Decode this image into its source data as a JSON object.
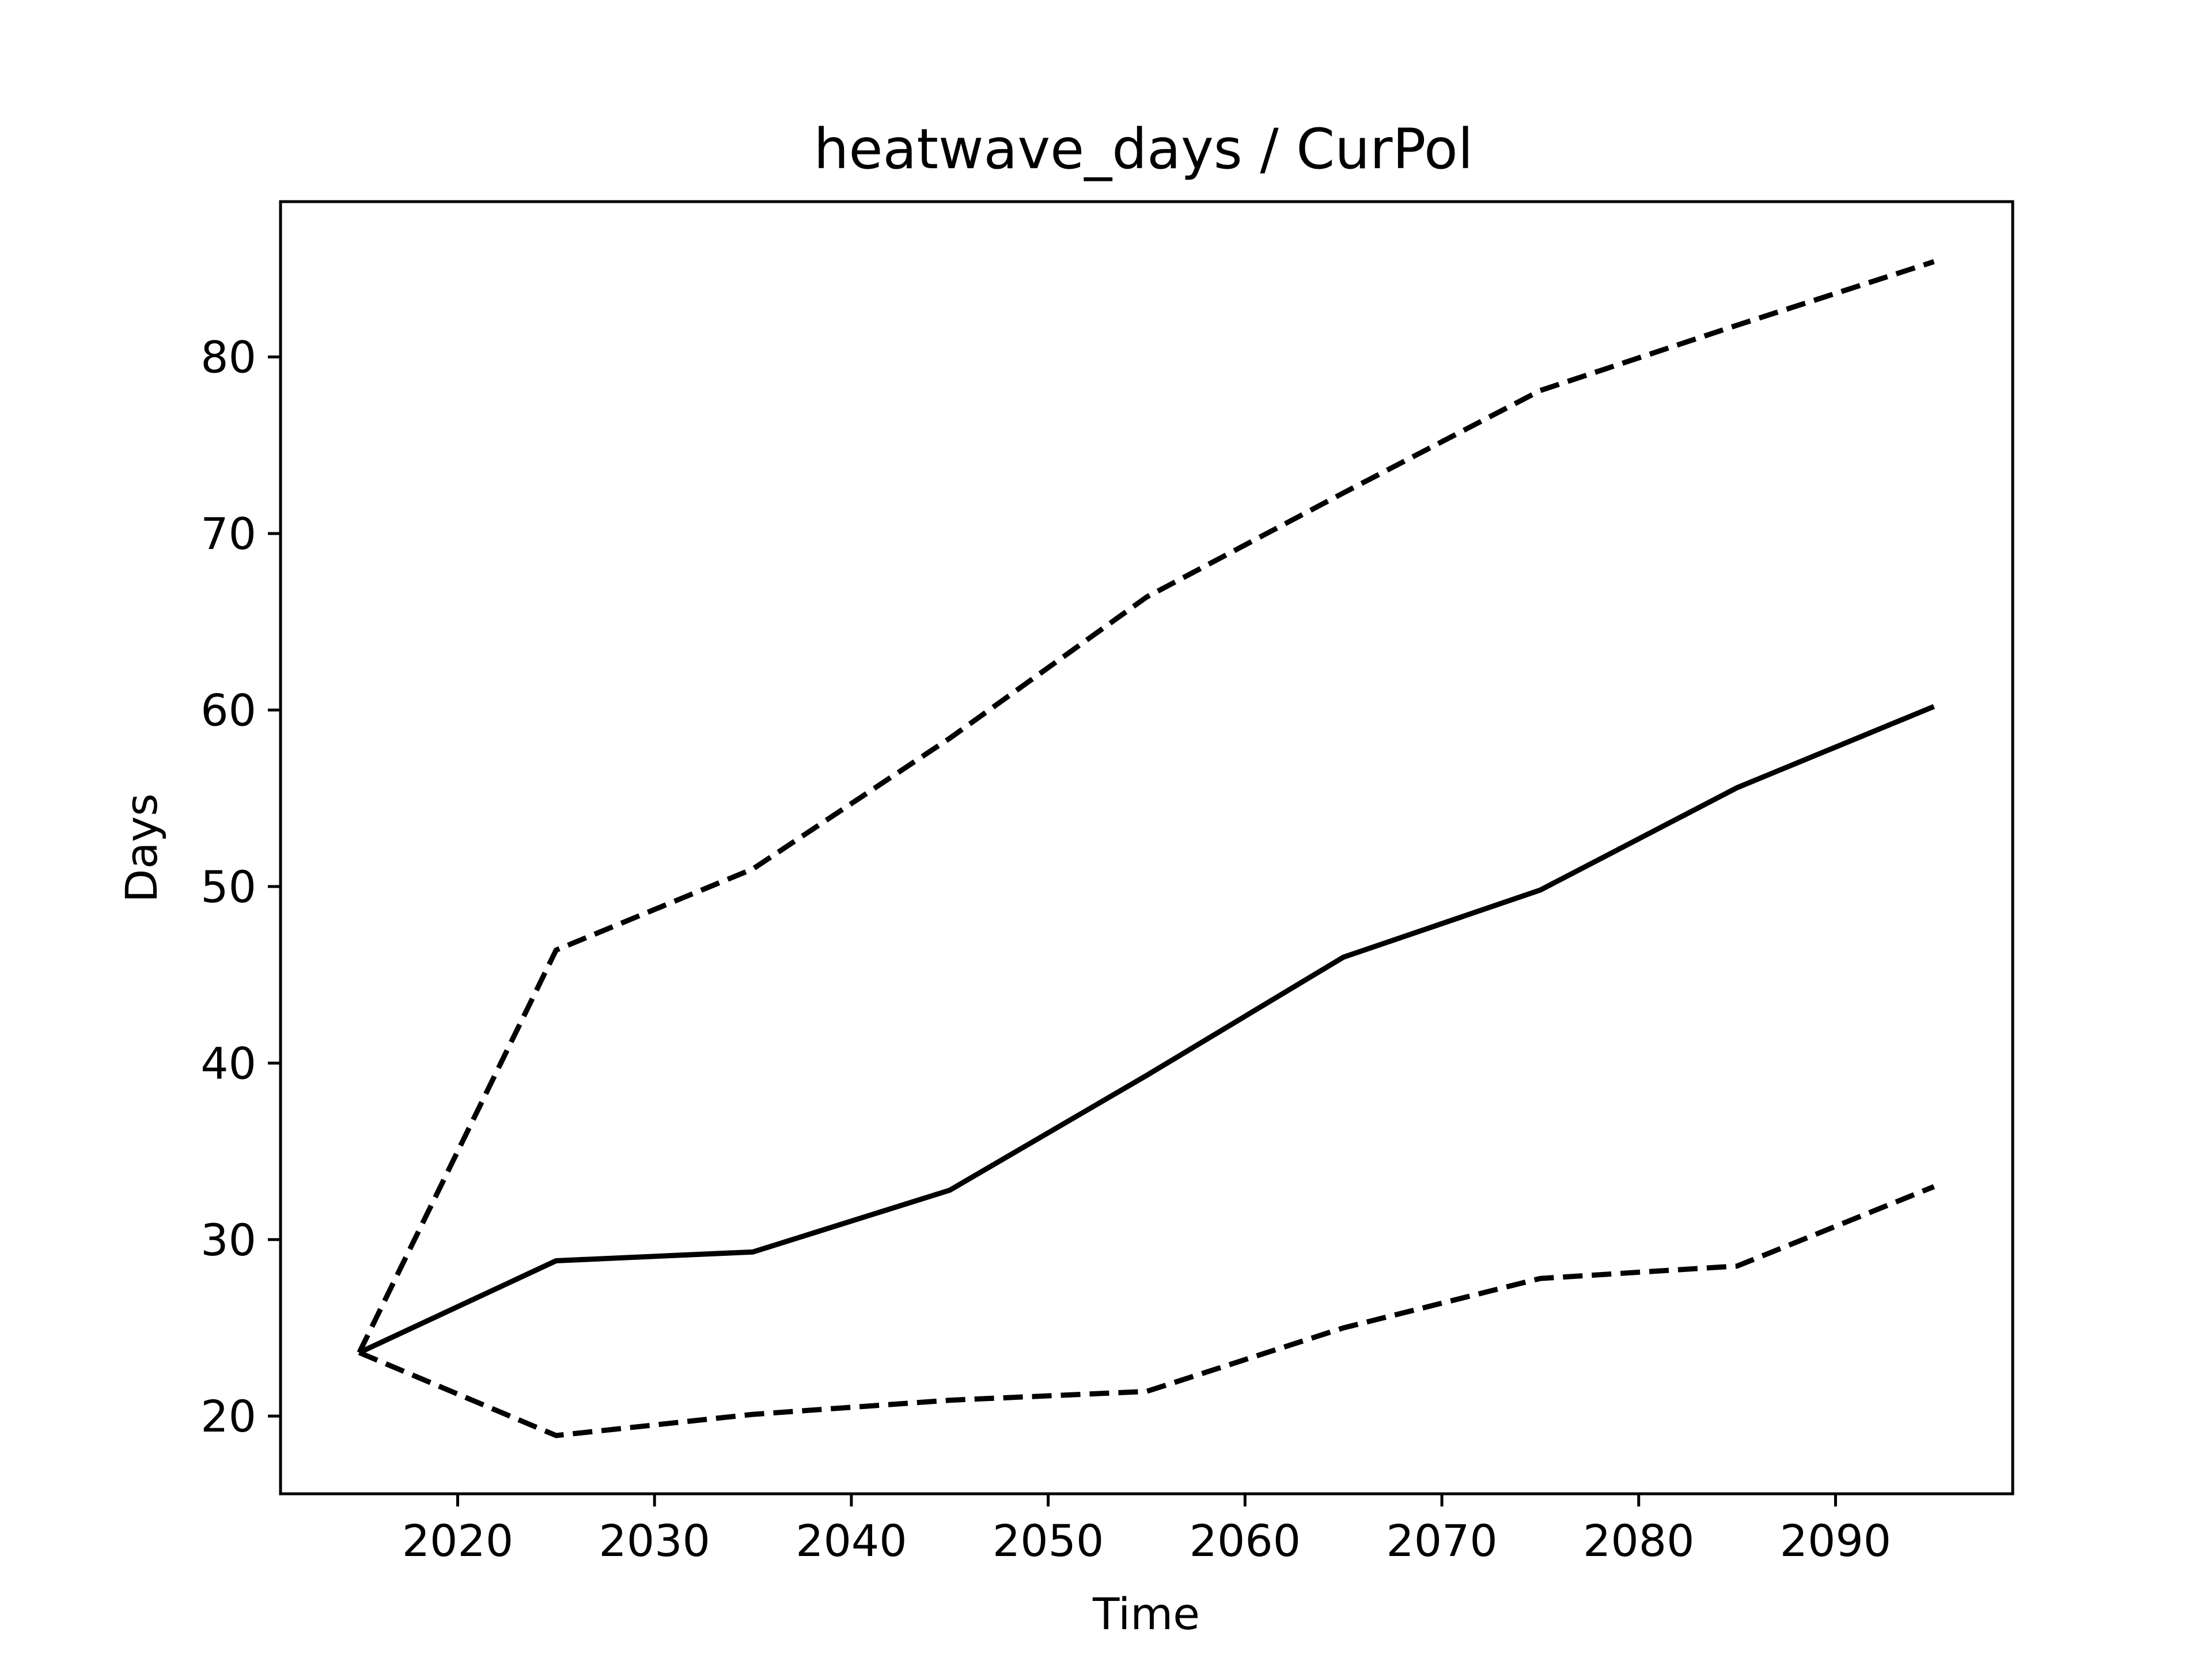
{
  "chart_data": {
    "type": "line",
    "title": "heatwave_days / CurPol",
    "xlabel": "Time",
    "ylabel": "Days",
    "x": [
      2015,
      2025,
      2035,
      2045,
      2055,
      2065,
      2075,
      2085,
      2095
    ],
    "xlim": [
      2011,
      2099
    ],
    "ylim": [
      15.6,
      88.8
    ],
    "xticks": [
      2020,
      2030,
      2040,
      2050,
      2060,
      2070,
      2080,
      2090
    ],
    "yticks": [
      20,
      30,
      40,
      50,
      60,
      70,
      80
    ],
    "grid": false,
    "series": [
      {
        "style": "solid",
        "color": "#000000",
        "values": [
          23.6,
          28.8,
          29.3,
          32.8,
          39.3,
          46.0,
          49.8,
          55.6,
          60.2
        ]
      },
      {
        "style": "dashed",
        "color": "#000000",
        "values": [
          23.6,
          46.4,
          51.0,
          58.4,
          66.4,
          72.3,
          78.1,
          81.8,
          85.4
        ]
      },
      {
        "style": "dashed",
        "color": "#000000",
        "values": [
          23.6,
          18.9,
          20.1,
          20.9,
          21.4,
          25.0,
          27.8,
          28.5,
          33.0
        ]
      }
    ]
  }
}
